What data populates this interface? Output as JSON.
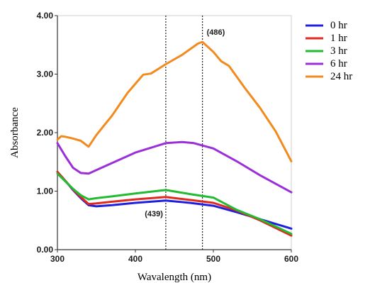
{
  "chart_data": {
    "type": "line",
    "title": "",
    "xlabel": "Wavalength (nm)",
    "ylabel": "Absorbance",
    "xlim": [
      300,
      600
    ],
    "ylim": [
      0,
      4
    ],
    "x_ticks": [
      300,
      400,
      500,
      600
    ],
    "x_tick_labels": [
      "300",
      "400",
      "500",
      "600"
    ],
    "y_ticks": [
      0,
      1,
      2,
      3,
      4
    ],
    "y_tick_labels": [
      "0.00",
      "1.00",
      "2.00",
      "3.00",
      "4.00"
    ],
    "grid": false,
    "legend_position": "right",
    "reference_lines": [
      {
        "x": 439,
        "label": "(439)",
        "label_anchor_y": 0.62
      },
      {
        "x": 486,
        "label": "(486)",
        "label_anchor_y": 3.72
      }
    ],
    "series": [
      {
        "name": "0 hr",
        "color": "#1f1fe0",
        "points": [
          [
            300,
            1.33
          ],
          [
            310,
            1.18
          ],
          [
            320,
            1.02
          ],
          [
            330,
            0.88
          ],
          [
            340,
            0.76
          ],
          [
            350,
            0.74
          ],
          [
            370,
            0.76
          ],
          [
            400,
            0.8
          ],
          [
            439,
            0.84
          ],
          [
            470,
            0.8
          ],
          [
            500,
            0.75
          ],
          [
            530,
            0.64
          ],
          [
            560,
            0.52
          ],
          [
            600,
            0.36
          ]
        ]
      },
      {
        "name": "1 hr",
        "color": "#e02a1f",
        "points": [
          [
            300,
            1.33
          ],
          [
            310,
            1.18
          ],
          [
            320,
            1.03
          ],
          [
            330,
            0.9
          ],
          [
            340,
            0.78
          ],
          [
            350,
            0.79
          ],
          [
            370,
            0.82
          ],
          [
            400,
            0.86
          ],
          [
            439,
            0.9
          ],
          [
            470,
            0.85
          ],
          [
            500,
            0.8
          ],
          [
            530,
            0.67
          ],
          [
            560,
            0.5
          ],
          [
            600,
            0.24
          ]
        ]
      },
      {
        "name": "3 hr",
        "color": "#22bb33",
        "points": [
          [
            300,
            1.3
          ],
          [
            310,
            1.17
          ],
          [
            320,
            1.04
          ],
          [
            330,
            0.93
          ],
          [
            340,
            0.86
          ],
          [
            350,
            0.88
          ],
          [
            370,
            0.91
          ],
          [
            400,
            0.96
          ],
          [
            439,
            1.02
          ],
          [
            470,
            0.95
          ],
          [
            500,
            0.89
          ],
          [
            530,
            0.68
          ],
          [
            560,
            0.52
          ],
          [
            600,
            0.27
          ]
        ]
      },
      {
        "name": "6 hr",
        "color": "#9b30d9",
        "points": [
          [
            300,
            1.82
          ],
          [
            310,
            1.6
          ],
          [
            320,
            1.4
          ],
          [
            330,
            1.31
          ],
          [
            340,
            1.3
          ],
          [
            350,
            1.36
          ],
          [
            370,
            1.48
          ],
          [
            400,
            1.66
          ],
          [
            439,
            1.82
          ],
          [
            460,
            1.84
          ],
          [
            475,
            1.82
          ],
          [
            500,
            1.73
          ],
          [
            530,
            1.51
          ],
          [
            560,
            1.27
          ],
          [
            600,
            0.98
          ]
        ]
      },
      {
        "name": "24 hr",
        "color": "#f28a1e",
        "points": [
          [
            300,
            1.88
          ],
          [
            305,
            1.94
          ],
          [
            310,
            1.93
          ],
          [
            320,
            1.9
          ],
          [
            330,
            1.86
          ],
          [
            340,
            1.76
          ],
          [
            350,
            1.96
          ],
          [
            370,
            2.29
          ],
          [
            390,
            2.68
          ],
          [
            410,
            2.99
          ],
          [
            420,
            3.01
          ],
          [
            439,
            3.17
          ],
          [
            460,
            3.33
          ],
          [
            480,
            3.52
          ],
          [
            486,
            3.55
          ],
          [
            500,
            3.38
          ],
          [
            510,
            3.22
          ],
          [
            520,
            3.14
          ],
          [
            540,
            2.77
          ],
          [
            560,
            2.42
          ],
          [
            580,
            2.02
          ],
          [
            600,
            1.51
          ]
        ]
      }
    ]
  }
}
